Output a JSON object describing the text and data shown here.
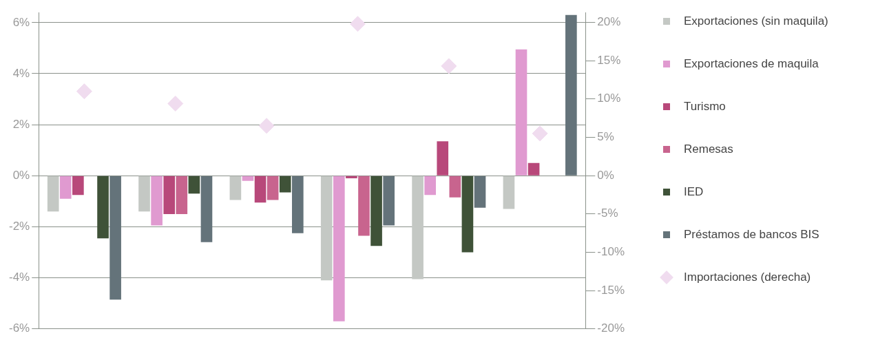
{
  "chart_data": {
    "type": "bar",
    "categories": [
      null,
      null,
      null,
      null,
      null,
      null
    ],
    "series": [
      {
        "name": "Exportaciones (sin maquila)",
        "color": "#c4c8c4",
        "values": [
          -1.4,
          -1.4,
          -0.95,
          -4.1,
          -4.05,
          -1.3
        ]
      },
      {
        "name": "Exportaciones de maquila",
        "color": "#e09ad0",
        "values": [
          -0.9,
          -1.95,
          -0.2,
          -5.7,
          -0.75,
          4.95
        ]
      },
      {
        "name": "Turismo",
        "color": "#b8487a",
        "values": [
          -0.75,
          -1.5,
          -1.05,
          -0.1,
          1.35,
          0.5
        ]
      },
      {
        "name": "Remesas",
        "color": "#c8648e",
        "values": [
          0,
          -1.5,
          -0.95,
          -2.35,
          -0.85,
          0
        ]
      },
      {
        "name": "IED",
        "color": "#3f5238",
        "values": [
          -2.45,
          -0.7,
          -0.65,
          -2.75,
          -3.0,
          0
        ]
      },
      {
        "name": "Préstamos de bancos BIS",
        "color": "#64737a",
        "values": [
          -4.85,
          -2.6,
          -2.25,
          -1.95,
          -1.25,
          6.3
        ]
      },
      {
        "name": "Importaciones (derecha)",
        "type": "scatter",
        "axis": "y2",
        "color": "#f0dcef",
        "values": [
          11,
          9.4,
          6.5,
          19.8,
          14.3,
          5.5
        ]
      }
    ],
    "ylim": [
      -6,
      6.4
    ],
    "yticks": [
      {
        "value": -6,
        "label": "-6%"
      },
      {
        "value": -4,
        "label": "-4%"
      },
      {
        "value": -2,
        "label": "-2%"
      },
      {
        "value": 0,
        "label": "0%"
      },
      {
        "value": 2,
        "label": "2%"
      },
      {
        "value": 4,
        "label": "4%"
      },
      {
        "value": 6,
        "label": "6%"
      }
    ],
    "y2lim": [
      -20,
      21.3
    ],
    "y2ticks": [
      {
        "value": -20,
        "label": "-20%"
      },
      {
        "value": -15,
        "label": "-15%"
      },
      {
        "value": -10,
        "label": "-10%"
      },
      {
        "value": -5,
        "label": "-5%"
      },
      {
        "value": 0,
        "label": "0%"
      },
      {
        "value": 5,
        "label": "5%"
      },
      {
        "value": 10,
        "label": "10%"
      },
      {
        "value": 15,
        "label": "15%"
      },
      {
        "value": 20,
        "label": "20%"
      }
    ],
    "grid": "y",
    "legend": "right",
    "marker": "diamond"
  }
}
